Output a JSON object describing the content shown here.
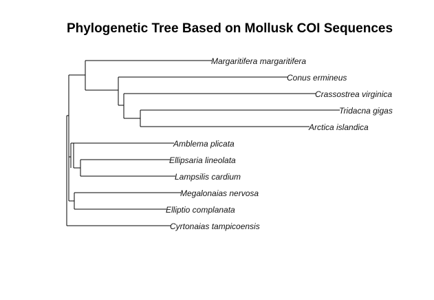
{
  "figure": {
    "title": "Phylogenetic Tree Based on Mollusk COI Sequences"
  },
  "tree": {
    "tips": [
      "Margaritifera margaritifera",
      "Conus ermineus",
      "Crassostrea virginica",
      "Tridacna gigas",
      "Arctica islandica",
      "Amblema plicata",
      "Ellipsaria lineolata",
      "Lampsilis cardium",
      "Megalonaias nervosa",
      "Elliptio complanata",
      "Cyrtonaias tampicoensis"
    ],
    "line_color": "#000000"
  }
}
